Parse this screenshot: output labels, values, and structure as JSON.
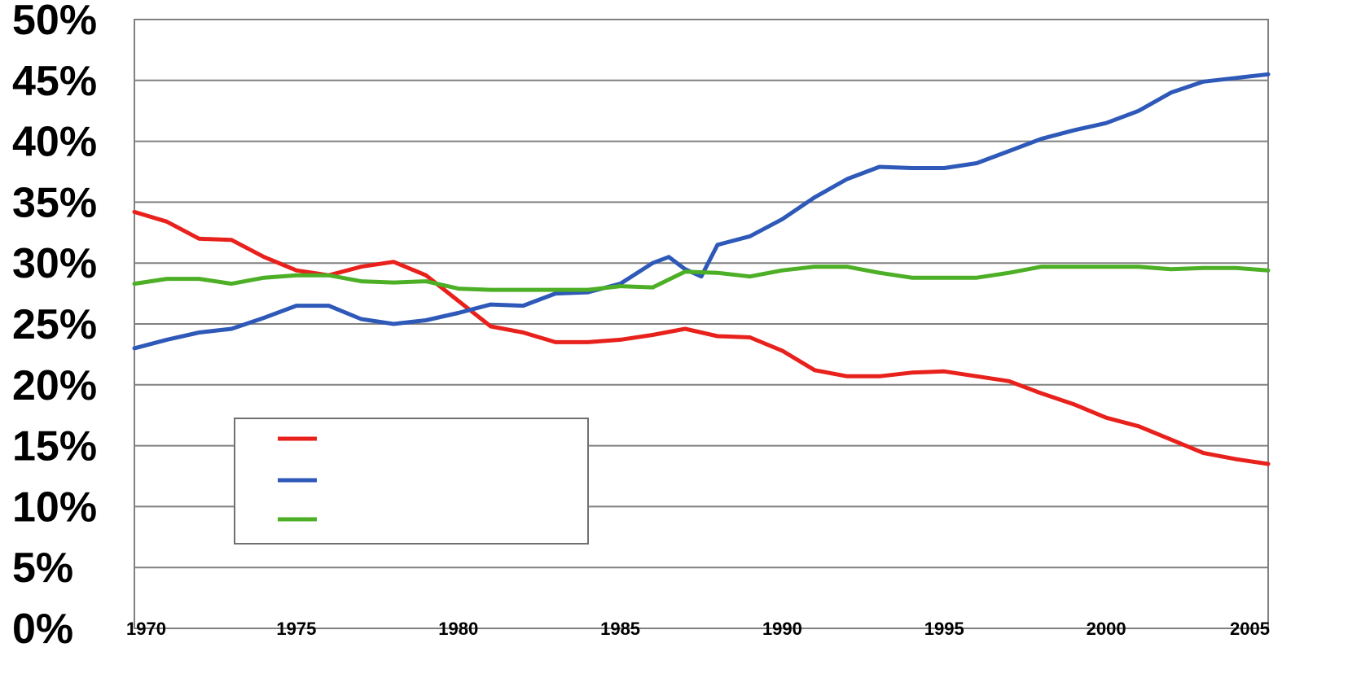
{
  "chart_data": {
    "type": "line",
    "y_ticks": [
      "0%",
      "5%",
      "10%",
      "15%",
      "20%",
      "25%",
      "30%",
      "35%",
      "40%",
      "45%",
      "50%"
    ],
    "x_ticks": [
      "1970",
      "1975",
      "1980",
      "1985",
      "1990",
      "1995",
      "2000",
      "2005"
    ],
    "xlim": [
      1970,
      2005
    ],
    "ylim": [
      0,
      50
    ],
    "grid": true,
    "legend_placement": "bottom-left",
    "series": [
      {
        "color": "#e8211c",
        "x": [
          1970,
          1971,
          1972,
          1973,
          1974,
          1975,
          1976,
          1977,
          1978,
          1979,
          1980,
          1981,
          1982,
          1983,
          1984,
          1985,
          1986,
          1987,
          1988,
          1989,
          1990,
          1991,
          1992,
          1993,
          1994,
          1995,
          1996,
          1997,
          1998,
          1999,
          2000,
          2001,
          2002,
          2003,
          2004,
          2005
        ],
        "values": [
          34.2,
          33.4,
          32.0,
          31.9,
          30.5,
          29.4,
          29.0,
          29.7,
          30.1,
          29.0,
          26.9,
          24.8,
          24.3,
          23.5,
          23.5,
          23.7,
          24.1,
          24.6,
          24.0,
          23.9,
          22.8,
          21.2,
          20.7,
          20.7,
          21.0,
          21.1,
          20.7,
          20.3,
          19.3,
          18.4,
          17.3,
          16.6,
          15.5,
          14.4,
          13.9,
          13.5
        ]
      },
      {
        "color": "#2e59b8",
        "x": [
          1970,
          1971,
          1972,
          1973,
          1974,
          1975,
          1976,
          1977,
          1978,
          1979,
          1980,
          1981,
          1982,
          1983,
          1984,
          1985,
          1986,
          1986.5,
          1987,
          1987.5,
          1988,
          1989,
          1990,
          1991,
          1992,
          1993,
          1994,
          1995,
          1996,
          1997,
          1998,
          1999,
          2000,
          2001,
          2002,
          2003,
          2004,
          2005
        ],
        "values": [
          23.0,
          23.7,
          24.3,
          24.6,
          25.5,
          26.5,
          26.5,
          25.4,
          25.0,
          25.3,
          25.9,
          26.6,
          26.5,
          27.5,
          27.6,
          28.3,
          30.0,
          30.5,
          29.5,
          28.9,
          31.5,
          32.2,
          33.6,
          35.4,
          36.9,
          37.9,
          37.8,
          37.8,
          38.2,
          39.2,
          40.2,
          40.9,
          41.5,
          42.5,
          44.0,
          44.9,
          45.2,
          45.5
        ]
      },
      {
        "color": "#4caf25",
        "x": [
          1970,
          1971,
          1972,
          1973,
          1974,
          1975,
          1976,
          1977,
          1978,
          1979,
          1980,
          1981,
          1982,
          1983,
          1984,
          1985,
          1986,
          1987,
          1988,
          1989,
          1990,
          1991,
          1992,
          1993,
          1994,
          1995,
          1996,
          1997,
          1998,
          1999,
          2000,
          2001,
          2002,
          2003,
          2004,
          2005
        ],
        "values": [
          28.3,
          28.7,
          28.7,
          28.3,
          28.8,
          29.0,
          29.0,
          28.5,
          28.4,
          28.5,
          27.9,
          27.8,
          27.8,
          27.8,
          27.8,
          28.1,
          28.0,
          29.3,
          29.2,
          28.9,
          29.4,
          29.7,
          29.7,
          29.2,
          28.8,
          28.8,
          28.8,
          29.2,
          29.7,
          29.7,
          29.7,
          29.7,
          29.5,
          29.6,
          29.6,
          29.4
        ]
      }
    ]
  }
}
